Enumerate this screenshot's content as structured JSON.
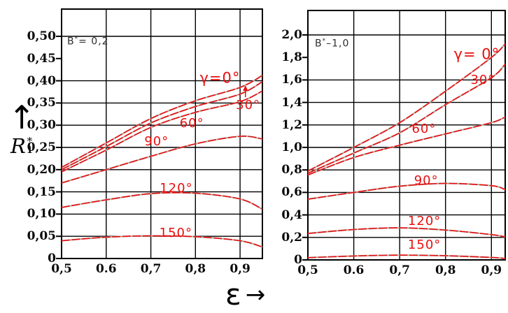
{
  "figure": {
    "y_axis_title": {
      "arrow": "↑",
      "symbol": "R",
      "sub": "1",
      "sup": "*"
    },
    "x_axis_title": {
      "symbol": "ε",
      "arrow": "→"
    }
  },
  "colors": {
    "curve": "#e80f0f",
    "curve_underlay": "#b9b5ae",
    "label": "#e80f0f",
    "grid": "#000000",
    "background": "#ffffff",
    "text": "#0a0a0a"
  },
  "chart_data": [
    {
      "type": "line",
      "param_label": {
        "base": "B",
        "sup": "*",
        "rest": "= 0,2"
      },
      "xlabel": "ε",
      "ylabel": "R1*",
      "x_range": [
        0.5,
        0.95
      ],
      "ylim": [
        0,
        0.56
      ],
      "grid": true,
      "x": [
        0.5,
        0.6,
        0.7,
        0.8,
        0.9,
        0.95
      ],
      "series": [
        {
          "name": "γ=0°",
          "values": [
            0.205,
            0.26,
            0.315,
            0.355,
            0.385,
            0.412
          ]
        },
        {
          "name": "γ=30°",
          "values": [
            0.2,
            0.252,
            0.305,
            0.342,
            0.37,
            0.398
          ]
        },
        {
          "name": "γ=60°",
          "values": [
            0.195,
            0.244,
            0.295,
            0.329,
            0.353,
            0.377
          ]
        },
        {
          "name": "γ=90°",
          "values": [
            0.17,
            0.2,
            0.23,
            0.258,
            0.275,
            0.269
          ]
        },
        {
          "name": "γ=120°",
          "values": [
            0.115,
            0.132,
            0.146,
            0.147,
            0.134,
            0.111
          ]
        },
        {
          "name": "γ=150°",
          "values": [
            0.04,
            0.048,
            0.051,
            0.049,
            0.04,
            0.026
          ]
        }
      ],
      "x_gridlines": [
        0.6,
        0.7,
        0.8,
        0.9
      ],
      "y_gridlines": [
        0.5,
        0.4,
        0.35,
        0.3,
        0.25,
        0.2,
        0.15,
        0.1,
        0.05
      ],
      "x_ticks": [
        {
          "v": 0.5,
          "label": "0,5"
        },
        {
          "v": 0.6,
          "label": "0.6"
        },
        {
          "v": 0.7,
          "label": "0,7"
        },
        {
          "v": 0.8,
          "label": "0,8"
        },
        {
          "v": 0.9,
          "label": "0,9"
        }
      ],
      "y_ticks": [
        {
          "v": 0.5,
          "label": "0,50"
        },
        {
          "v": 0.45,
          "label": "0,45"
        },
        {
          "v": 0.4,
          "label": "0,40"
        },
        {
          "v": 0.35,
          "label": "0,35"
        },
        {
          "v": 0.3,
          "label": "0,30"
        },
        {
          "v": 0.25,
          "label": "0,25"
        },
        {
          "v": 0.2,
          "label": "0,20"
        },
        {
          "v": 0.15,
          "label": "0,15"
        },
        {
          "v": 0.1,
          "label": "0,10"
        },
        {
          "v": 0.05,
          "label": "0,05"
        },
        {
          "v": 0,
          "label": "0"
        }
      ],
      "annotations": [
        {
          "text": "γ=0°",
          "eps": 0.855,
          "val": 0.405,
          "size": 21
        },
        {
          "text": "30°",
          "eps": 0.918,
          "val": 0.344,
          "size": 18,
          "arrow": {
            "eps": 0.912,
            "from": 0.363,
            "to": 0.39
          }
        },
        {
          "text": "60°",
          "eps": 0.792,
          "val": 0.303,
          "size": 18
        },
        {
          "text": "90°",
          "eps": 0.713,
          "val": 0.262,
          "size": 18
        },
        {
          "text": "120°",
          "eps": 0.757,
          "val": 0.158,
          "size": 18
        },
        {
          "text": "150°",
          "eps": 0.756,
          "val": 0.057,
          "size": 18
        }
      ]
    },
    {
      "type": "line",
      "param_label": {
        "base": "B",
        "sup": "*",
        "rest": "–1,0"
      },
      "xlabel": "ε",
      "ylabel": "R1*",
      "x_range": [
        0.5,
        0.93
      ],
      "ylim": [
        0,
        2.22
      ],
      "grid": true,
      "x": [
        0.5,
        0.6,
        0.7,
        0.8,
        0.9,
        0.93
      ],
      "series": [
        {
          "name": "γ=0°",
          "values": [
            0.79,
            1.0,
            1.22,
            1.5,
            1.8,
            1.92
          ]
        },
        {
          "name": "γ=30°",
          "values": [
            0.77,
            0.95,
            1.13,
            1.38,
            1.62,
            1.74
          ]
        },
        {
          "name": "γ=60°",
          "values": [
            0.755,
            0.91,
            1.02,
            1.12,
            1.22,
            1.27
          ]
        },
        {
          "name": "γ=90°",
          "values": [
            0.54,
            0.6,
            0.655,
            0.68,
            0.66,
            0.625
          ]
        },
        {
          "name": "γ=120°",
          "values": [
            0.235,
            0.27,
            0.285,
            0.265,
            0.225,
            0.205
          ]
        },
        {
          "name": "γ=150°",
          "values": [
            0.02,
            0.035,
            0.042,
            0.037,
            0.022,
            0.012
          ]
        }
      ],
      "x_gridlines": [
        0.6,
        0.7,
        0.8,
        0.9
      ],
      "y_gridlines": [
        2.0,
        1.6,
        1.4,
        1.2,
        1.0,
        0.8,
        0.6,
        0.4,
        0.2
      ],
      "x_ticks": [
        {
          "v": 0.5,
          "label": "0,5"
        },
        {
          "v": 0.6,
          "label": "0.6"
        },
        {
          "v": 0.7,
          "label": "0,7"
        },
        {
          "v": 0.8,
          "label": "0,8"
        },
        {
          "v": 0.9,
          "label": "0,9"
        }
      ],
      "y_ticks": [
        {
          "v": 2.0,
          "label": "2,0"
        },
        {
          "v": 1.8,
          "label": "1,8"
        },
        {
          "v": 1.6,
          "label": "1,6"
        },
        {
          "v": 1.4,
          "label": "1,4"
        },
        {
          "v": 1.2,
          "label": "1,2"
        },
        {
          "v": 1.0,
          "label": "1,0"
        },
        {
          "v": 0.8,
          "label": "0,8"
        },
        {
          "v": 0.6,
          "label": "0,6"
        },
        {
          "v": 0.4,
          "label": "0,4"
        },
        {
          "v": 0.2,
          "label": "0,2"
        },
        {
          "v": 0,
          "label": "0"
        }
      ],
      "annotations": [
        {
          "text": "γ= 0°",
          "eps": 0.868,
          "val": 1.828,
          "size": 21
        },
        {
          "text": "30°",
          "eps": 0.881,
          "val": 1.598,
          "size": 18
        },
        {
          "text": "60°",
          "eps": 0.753,
          "val": 1.162,
          "size": 18
        },
        {
          "text": "90°",
          "eps": 0.758,
          "val": 0.7,
          "size": 18
        },
        {
          "text": "120°",
          "eps": 0.754,
          "val": 0.342,
          "size": 18
        },
        {
          "text": "150°",
          "eps": 0.754,
          "val": 0.13,
          "size": 18
        }
      ]
    }
  ]
}
